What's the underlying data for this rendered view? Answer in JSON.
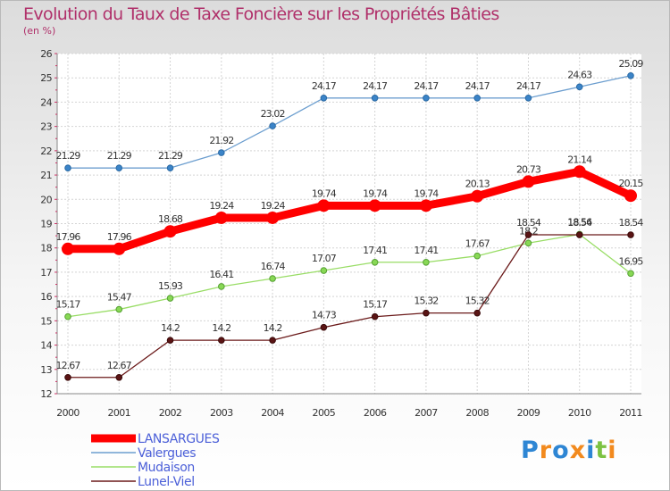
{
  "title": "Evolution du Taux de Taxe Foncière sur les Propriétés Bâties",
  "subtitle": "(en %)",
  "logo": "Proxiti",
  "chart_data": {
    "type": "line",
    "x": [
      "2000",
      "2001",
      "2002",
      "2003",
      "2004",
      "2005",
      "2006",
      "2007",
      "2008",
      "2009",
      "2010",
      "2011"
    ],
    "ylim": [
      12,
      26
    ],
    "yticks": [
      12,
      13,
      14,
      15,
      16,
      17,
      18,
      19,
      20,
      21,
      22,
      23,
      24,
      25,
      26
    ],
    "grid": true,
    "legend_position": "bottom-left",
    "series": [
      {
        "name": "LANSARGUES",
        "color": "#ff0000",
        "labels": [
          "17.96",
          "17.96",
          "18.68",
          "19.24",
          "19.24",
          "19.74",
          "19.74",
          "19.74",
          "20.13",
          "20.73",
          "21.14",
          "20.15"
        ],
        "values": [
          17.96,
          17.96,
          18.68,
          19.24,
          19.24,
          19.74,
          19.74,
          19.74,
          20.13,
          20.73,
          21.14,
          20.15
        ]
      },
      {
        "name": "Valergues",
        "color": "#6c9ecf",
        "labels": [
          "21.29",
          "21.29",
          "21.29",
          "21.92",
          "23.02",
          "24.17",
          "24.17",
          "24.17",
          "24.17",
          "24.17",
          "24.63",
          "25.09"
        ],
        "values": [
          21.29,
          21.29,
          21.29,
          21.92,
          23.02,
          24.17,
          24.17,
          24.17,
          24.17,
          24.17,
          24.63,
          25.09
        ]
      },
      {
        "name": "Mudaison",
        "color": "#99dd66",
        "labels": [
          "15.17",
          "15.47",
          "15.93",
          "16.41",
          "16.74",
          "17.07",
          "17.41",
          "17.41",
          "17.67",
          "18.2",
          "18.56",
          "16.95"
        ],
        "values": [
          15.17,
          15.47,
          15.93,
          16.41,
          16.74,
          17.07,
          17.41,
          17.41,
          17.67,
          18.2,
          18.56,
          16.95
        ]
      },
      {
        "name": "Lunel-Viel",
        "color": "#6b1a1a",
        "labels": [
          "12.67",
          "12.67",
          "14.2",
          "14.2",
          "14.2",
          "14.73",
          "15.17",
          "15.32",
          "15.32",
          "18.54",
          "18.54",
          "18.54"
        ],
        "values": [
          12.67,
          12.67,
          14.2,
          14.2,
          14.2,
          14.73,
          15.17,
          15.32,
          15.32,
          18.54,
          18.54,
          18.54
        ]
      }
    ]
  }
}
